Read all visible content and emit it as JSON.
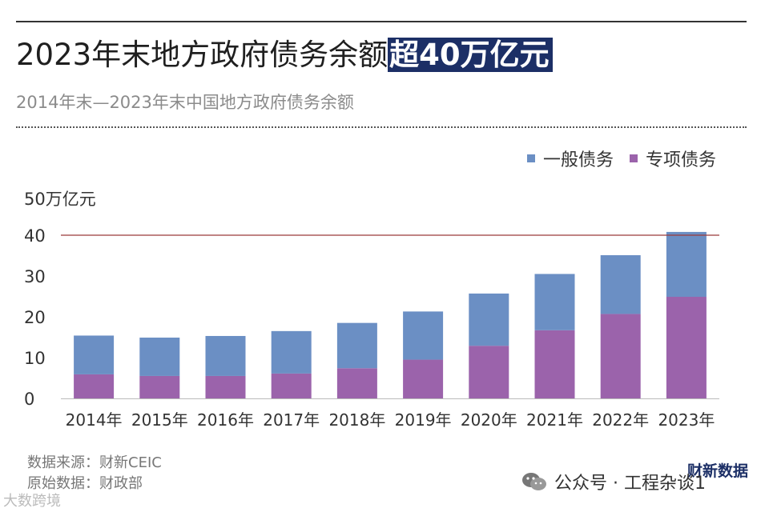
{
  "header": {
    "title_main": "2023年末地方政府债务余额",
    "title_highlight": "超40万亿元",
    "subtitle": "2014年末—2023年末中国地方政府债务余额"
  },
  "legend": {
    "items": [
      {
        "label": "一般债务",
        "color": "#6b8fc4"
      },
      {
        "label": "专项债务",
        "color": "#9b63ab"
      }
    ]
  },
  "axis": {
    "unit_label": "50万亿元",
    "y_ticks": [
      "0",
      "10",
      "20",
      "30",
      "40"
    ]
  },
  "chart_data": {
    "type": "bar",
    "stacked": true,
    "categories": [
      "2014年",
      "2015年",
      "2016年",
      "2017年",
      "2018年",
      "2019年",
      "2020年",
      "2021年",
      "2022年",
      "2023年"
    ],
    "series": [
      {
        "name": "专项债务",
        "color": "#9b63ab",
        "values": [
          5.9,
          5.5,
          5.5,
          6.1,
          7.4,
          9.5,
          12.9,
          16.7,
          20.7,
          24.9
        ]
      },
      {
        "name": "一般债务",
        "color": "#6b8fc4",
        "values": [
          9.5,
          9.4,
          9.8,
          10.4,
          11.1,
          11.8,
          12.8,
          13.8,
          14.4,
          15.9
        ]
      }
    ],
    "ylim": [
      0,
      50
    ],
    "reference_line": 40,
    "grid": false
  },
  "footer": {
    "source": "数据来源：财新CEIC",
    "original": "原始数据：财政部",
    "brand": "财新数据",
    "wechat": "公众号 · 工程杂谈1",
    "corner": "大数跨境"
  }
}
